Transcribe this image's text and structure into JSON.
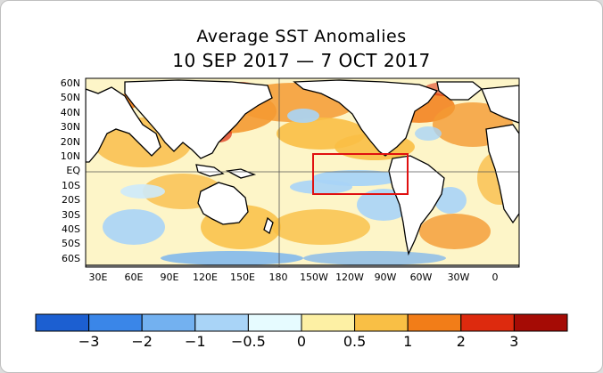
{
  "title_line1": "Average SST Anomalies",
  "title_line2": "10 SEP 2017 — 7 OCT 2017",
  "map": {
    "lat_labels": [
      "60N",
      "50N",
      "40N",
      "30N",
      "20N",
      "10N",
      "EQ",
      "10S",
      "20S",
      "30S",
      "40S",
      "50S",
      "60S"
    ],
    "lon_labels": [
      "30E",
      "60E",
      "90E",
      "120E",
      "150E",
      "180",
      "150W",
      "120W",
      "90W",
      "60W",
      "30W",
      "0"
    ],
    "highlight_box_color": "#e01010"
  },
  "colorbar": {
    "colors": [
      "#1c5fd1",
      "#3a86e8",
      "#73b1f0",
      "#a9d4f7",
      "#e6fbff",
      "#fdf0a4",
      "#f9bf45",
      "#f27d18",
      "#dd2a0e",
      "#a50b05"
    ],
    "labels": [
      "−3",
      "−2",
      "−1",
      "−0.5",
      "0",
      "0.5",
      "1",
      "2",
      "3"
    ]
  }
}
